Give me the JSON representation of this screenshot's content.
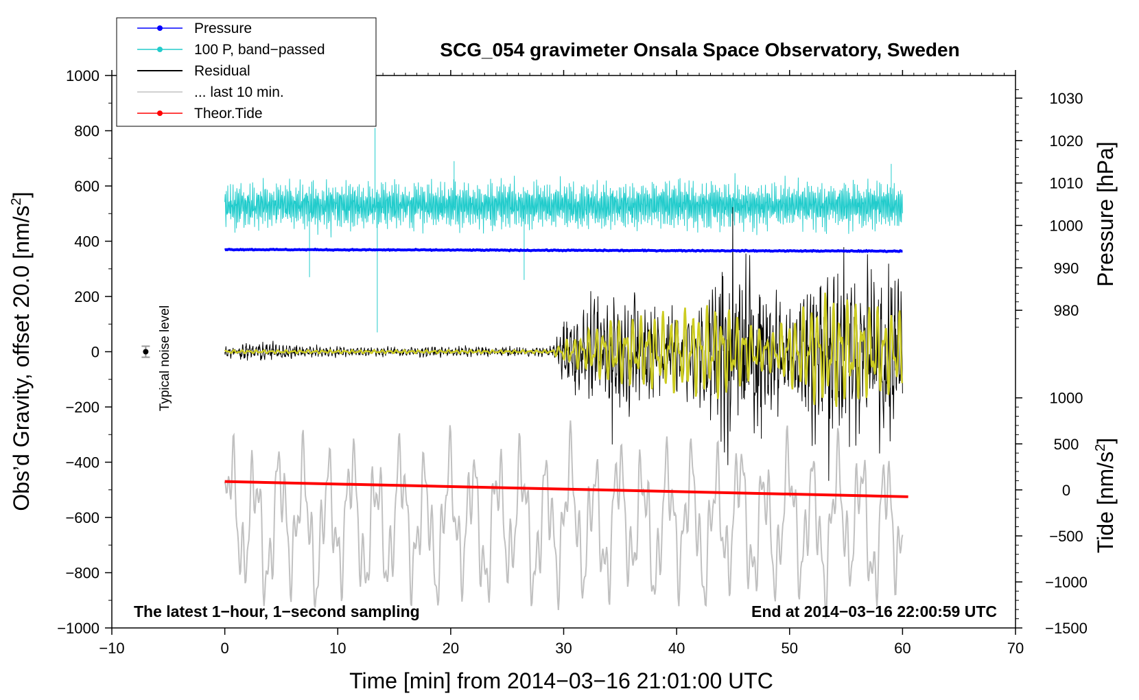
{
  "chart_data": {
    "type": "line",
    "title": "SCG_054 gravimeter Onsala Space Observatory, Sweden",
    "xlabel": "Time [min] from 2014−03−16 21:01:00 UTC",
    "ylabel_left": "Obs’d Gravity, offset 20.0 [nm/s",
    "ylabel_left_sup": "2",
    "ylabel_left_end": "]",
    "ylabel_right_top": "Pressure [hPa]",
    "ylabel_right_bottom": "Tide [nm/s",
    "ylabel_right_bottom_sup": "2",
    "ylabel_right_bottom_end": "]",
    "xlim": [
      -10,
      70
    ],
    "ylim_left": [
      -1000,
      1000
    ],
    "x_ticks": [
      -10,
      0,
      10,
      20,
      30,
      40,
      50,
      60,
      70
    ],
    "x_tick_labels": [
      "−10",
      "0",
      "10",
      "20",
      "30",
      "40",
      "50",
      "60",
      "70"
    ],
    "y_ticks": [
      -1000,
      -800,
      -600,
      -400,
      -200,
      0,
      200,
      400,
      600,
      800,
      1000
    ],
    "y_tick_labels": [
      "−1000",
      "−800",
      "−600",
      "−400",
      "−200",
      "0",
      "200",
      "400",
      "600",
      "800",
      "1000"
    ],
    "pressure_axis": {
      "ticks": [
        980,
        990,
        1000,
        1010,
        1020,
        1030
      ],
      "tick_labels": [
        "980",
        "990",
        "1000",
        "1010",
        "1020",
        "1030"
      ],
      "anchor": {
        "hpa": [
          980,
          1030
        ],
        "left_value": [
          150,
          918
        ]
      }
    },
    "tide_axis": {
      "ticks": [
        -1500,
        -1000,
        -500,
        0,
        500,
        1000
      ],
      "tick_labels": [
        "−1500",
        "−1000",
        "−500",
        "0",
        "500",
        "1000"
      ],
      "anchor": {
        "tide": [
          -1500,
          1000
        ],
        "left_value": [
          -1000,
          -167
        ]
      }
    },
    "legend": {
      "position": "top-left",
      "entries": [
        {
          "label": "Pressure",
          "color": "#0000ff",
          "marker": true
        },
        {
          "label": "100 P, band−passed",
          "color": "#22cccc",
          "marker": true
        },
        {
          "label": "Residual",
          "color": "#000000",
          "marker": false
        },
        {
          "label": "... last 10 min.",
          "color": "#c0c0c0",
          "marker": false
        },
        {
          "label": "Theor.Tide",
          "color": "#ff0000",
          "marker": true
        }
      ]
    },
    "series": [
      {
        "name": "Pressure",
        "color": "#0000ff",
        "x_range": [
          0,
          60
        ],
        "level_start": 370,
        "level_end": 364
      },
      {
        "name": "100 P, band−passed",
        "color": "#22cccc",
        "x_range": [
          0,
          60
        ],
        "mean": 530,
        "spread": 90,
        "spikes": [
          [
            7.5,
            270
          ],
          [
            13.3,
            810
          ],
          [
            13.5,
            70
          ],
          [
            20.3,
            690
          ],
          [
            26.5,
            260
          ],
          [
            44,
            480
          ],
          [
            59,
            680
          ]
        ]
      },
      {
        "name": "Residual",
        "color": "#000000",
        "x_range": [
          0,
          60
        ],
        "envelope": [
          [
            0,
            25
          ],
          [
            3,
            40
          ],
          [
            10,
            20
          ],
          [
            29,
            20
          ],
          [
            30,
            130
          ],
          [
            33.5,
            200
          ],
          [
            34,
            300
          ],
          [
            40,
            180
          ],
          [
            43,
            300
          ],
          [
            44,
            500
          ],
          [
            50,
            200
          ],
          [
            53,
            380
          ],
          [
            60,
            320
          ]
        ]
      },
      {
        "name": "Residual band-passed",
        "color": "#cccc22",
        "x_range": [
          0,
          60
        ],
        "envelope": [
          [
            0,
            6
          ],
          [
            29,
            6
          ],
          [
            30,
            40
          ],
          [
            34,
            120
          ],
          [
            44,
            180
          ],
          [
            48,
            70
          ],
          [
            53,
            220
          ],
          [
            60,
            150
          ]
        ]
      },
      {
        "name": "... last 10 min.",
        "color": "#c0c0c0",
        "x_range": [
          0,
          60
        ],
        "mean": -620,
        "spread": 180
      },
      {
        "name": "Theor.Tide",
        "color": "#ff0000",
        "x_range": [
          0,
          60.5
        ],
        "y_start": -470,
        "y_end": -525
      }
    ],
    "error_bar": {
      "x": -7,
      "y": 0,
      "half_height": 20,
      "color": "#999999"
    },
    "annotations": {
      "noise_label": "Typical noise level",
      "footer_left": "The latest 1−hour, 1−second sampling",
      "footer_right": "End at 2014−03−16 22:00:59 UTC"
    }
  }
}
